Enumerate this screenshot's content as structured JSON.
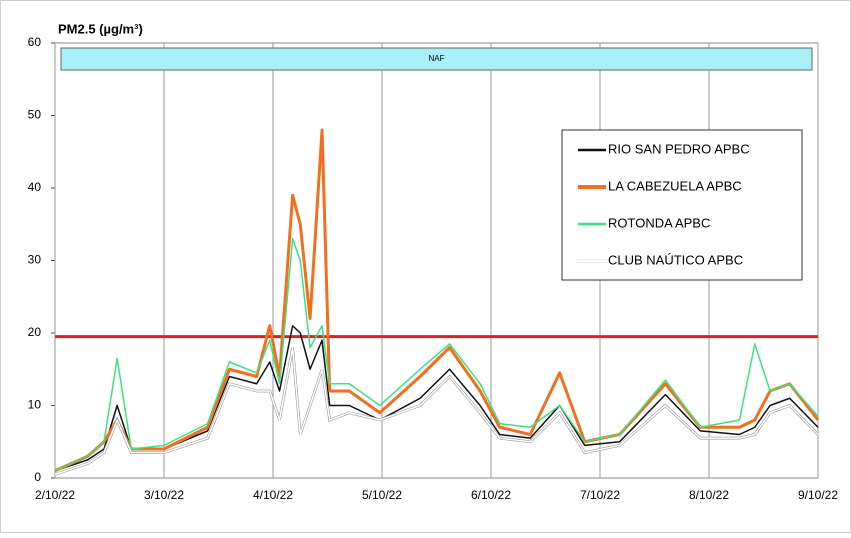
{
  "chart_data": {
    "type": "line",
    "title": "PM2.5 (µg/m³)",
    "x": [
      0,
      0.3,
      0.45,
      0.57,
      0.7,
      1.0,
      1.4,
      1.6,
      1.85,
      1.97,
      2.06,
      2.18,
      2.25,
      2.34,
      2.45,
      2.52,
      2.7,
      2.98,
      3.35,
      3.62,
      3.9,
      4.08,
      4.36,
      4.63,
      4.86,
      5.18,
      5.6,
      5.92,
      6.28,
      6.42,
      6.56,
      6.74,
      7
    ],
    "xlim": [
      0,
      7
    ],
    "xticks": [
      {
        "value": 0,
        "label": "2/10/22"
      },
      {
        "value": 1,
        "label": "3/10/22"
      },
      {
        "value": 2,
        "label": "4/10/22"
      },
      {
        "value": 3,
        "label": "5/10/22"
      },
      {
        "value": 4,
        "label": "6/10/22"
      },
      {
        "value": 5,
        "label": "7/10/22"
      },
      {
        "value": 6,
        "label": "8/10/22"
      },
      {
        "value": 7,
        "label": "9/10/22"
      }
    ],
    "ylim": [
      0,
      60
    ],
    "yticks": [
      0,
      10,
      20,
      30,
      40,
      50,
      60
    ],
    "grid": true,
    "threshold": {
      "value": 19.5,
      "color": "#e02020"
    },
    "band_label": "NAF",
    "legend": "upper right",
    "series": [
      {
        "name": "RIO SAN PEDRO APBC",
        "color": "#111111",
        "width": 1.5,
        "values": [
          1,
          2.5,
          4,
          10,
          4,
          4,
          6.5,
          14,
          13,
          16,
          12,
          21,
          20,
          15,
          19,
          10,
          10,
          8,
          11,
          15,
          10,
          6,
          5.5,
          10,
          4.5,
          5,
          11.5,
          6.5,
          6,
          7,
          10,
          11,
          7
        ]
      },
      {
        "name": "LA CABEZUELA  APBC",
        "color": "#f07020",
        "width": 3,
        "values": [
          1,
          3,
          5,
          8,
          4,
          4,
          7,
          15,
          14,
          21,
          14,
          39,
          35,
          22,
          48,
          12,
          12,
          9,
          14,
          18,
          12,
          7,
          6,
          14.5,
          5,
          6,
          13,
          7,
          7,
          8,
          12,
          13,
          8
        ]
      },
      {
        "name": "ROTONDA  APBC",
        "color": "#40e080",
        "width": 1.5,
        "values": [
          1,
          3,
          5,
          16.5,
          4,
          4.5,
          7.5,
          16,
          14.5,
          19,
          13,
          33,
          30,
          18,
          21,
          13,
          13,
          10,
          15,
          18.5,
          13,
          7.5,
          7,
          10,
          5,
          6,
          13.5,
          7,
          8,
          18.5,
          12,
          13,
          8.5
        ]
      },
      {
        "name": "CLUB NAÚTICO  APBC",
        "color": "#ffffff",
        "width": 1.5,
        "values": [
          0.5,
          2,
          3.5,
          8,
          3.5,
          3.5,
          5.5,
          13,
          12,
          12,
          8,
          18,
          6,
          10,
          15,
          8,
          9,
          8,
          10,
          14,
          9,
          5.5,
          5,
          9,
          3.5,
          4.5,
          10,
          5.5,
          5.5,
          6,
          9,
          10,
          6
        ]
      }
    ]
  }
}
